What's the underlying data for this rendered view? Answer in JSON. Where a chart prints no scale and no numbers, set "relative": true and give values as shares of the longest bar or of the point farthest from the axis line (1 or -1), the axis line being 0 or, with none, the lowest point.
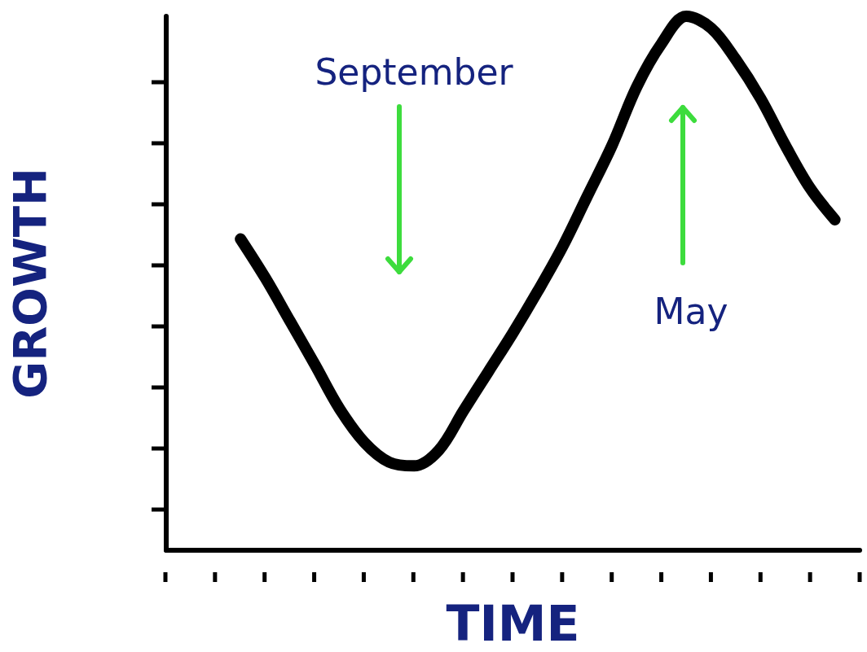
{
  "chart_data": {
    "type": "line",
    "relative": true,
    "xlabel": "TIME",
    "ylabel": "GROWTH",
    "annotations": [
      "September",
      "May"
    ],
    "categories": [
      null,
      null,
      null,
      null,
      null,
      null,
      null,
      null,
      null,
      null,
      null,
      null,
      null,
      null,
      null,
      null,
      null,
      null,
      null,
      null,
      null,
      null,
      null,
      null,
      null,
      null,
      null,
      null,
      null
    ],
    "series": [
      {
        "color": "#000000",
        "values": [
          null,
          null,
          null,
          0.583,
          0.51,
          0.429,
          0.348,
          0.265,
          0.202,
          0.165,
          0.158,
          0.187,
          0.261,
          0.334,
          0.407,
          0.485,
          0.568,
          0.663,
          0.758,
          0.868,
          0.949,
          1,
          0.978,
          0.919,
          0.846,
          0.758,
          0.678,
          0.619,
          null
        ]
      }
    ],
    "grid": false,
    "line_style": "solid"
  }
}
